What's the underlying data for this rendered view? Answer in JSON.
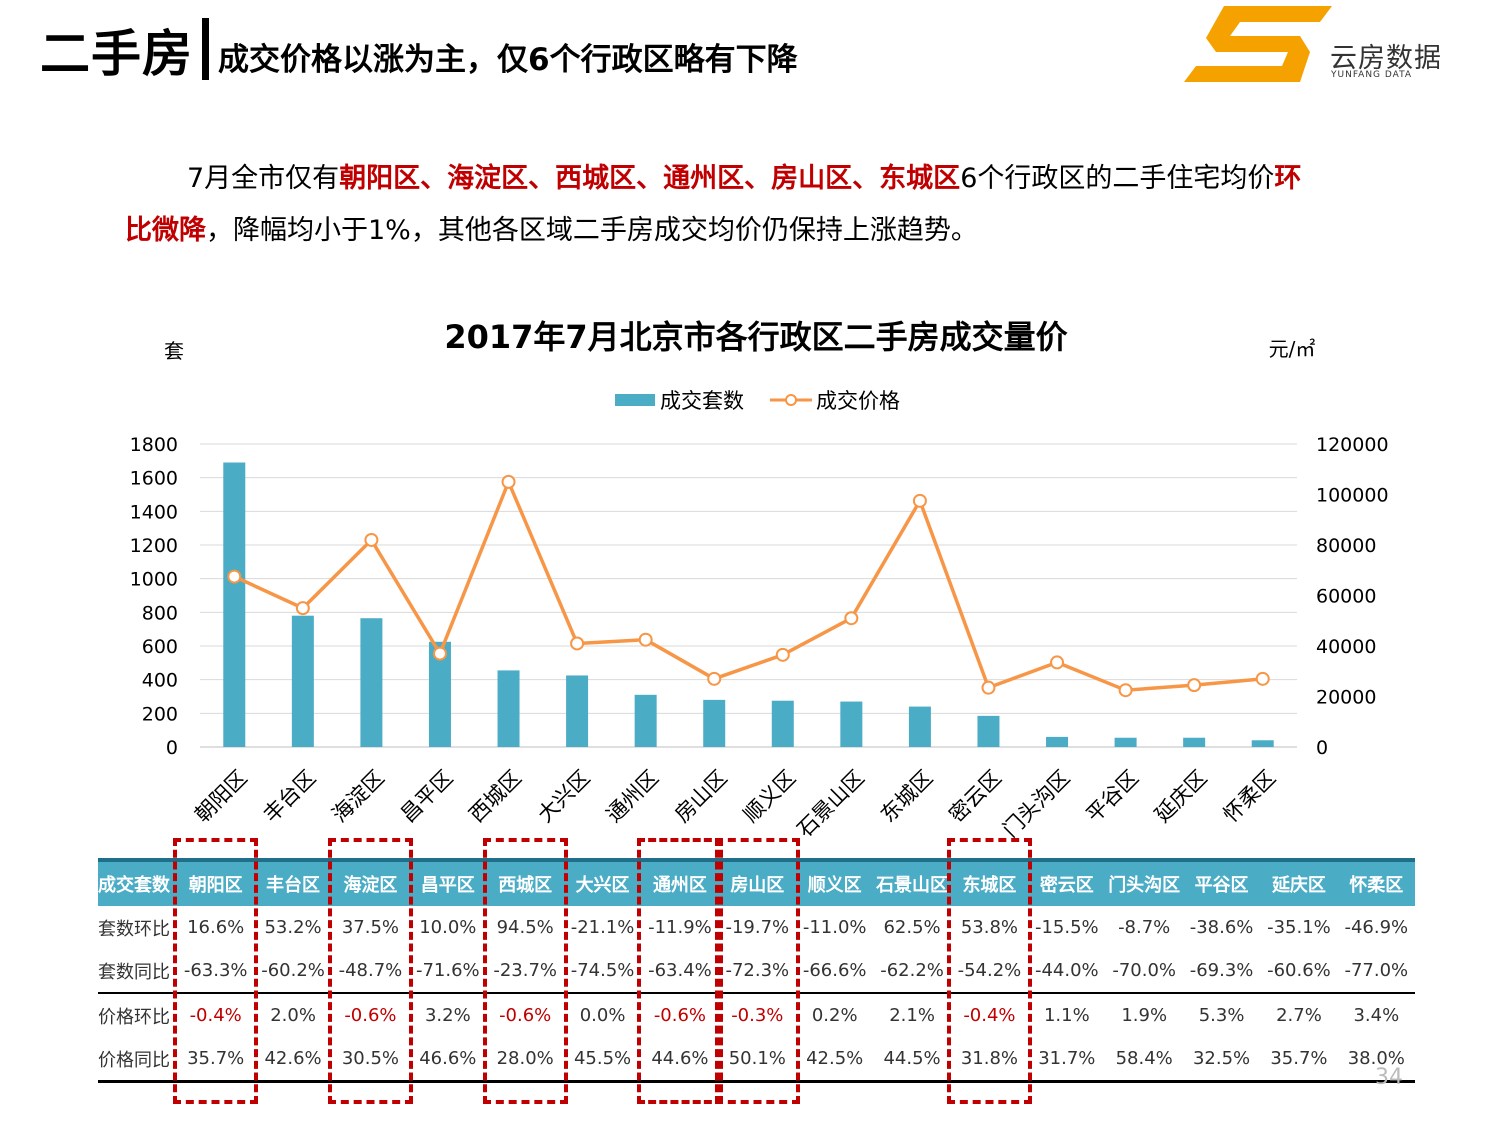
{
  "header": {
    "title": "二手房",
    "subtitle": "成交价格以涨为主，仅6个行政区略有下降",
    "logo_text": "云房数据",
    "logo_sub": "YUNFANG DATA"
  },
  "summary": {
    "line1": [
      {
        "text": "7月全市仅有",
        "em": false
      },
      {
        "text": "朝阳区、海淀区、西城区、通州区、房山区、东城区",
        "em": true
      },
      {
        "text": "6个行政区的二手住宅均价",
        "em": false
      },
      {
        "text": "环",
        "em": true
      }
    ],
    "line2": [
      {
        "text": "比微降",
        "em": true
      },
      {
        "text": "，降幅均小于1%，其他各区域二手房成交均价仍保持上涨趋势。",
        "em": false
      }
    ]
  },
  "chart_data": {
    "type": "bar+line",
    "title": "2017年7月北京市各行政区二手房成交量价",
    "y_left_label": "套",
    "y_right_label": "元/㎡",
    "legend_position": "top",
    "categories": [
      "朝阳区",
      "丰台区",
      "海淀区",
      "昌平区",
      "西城区",
      "大兴区",
      "通州区",
      "房山区",
      "顺义区",
      "石景山区",
      "东城区",
      "密云区",
      "门头沟区",
      "平谷区",
      "延庆区",
      "怀柔区"
    ],
    "series": [
      {
        "name": "成交套数",
        "type": "bar",
        "axis": "left",
        "color": "#4bacc6",
        "values": [
          1690,
          780,
          765,
          625,
          455,
          425,
          310,
          280,
          275,
          270,
          240,
          185,
          60,
          55,
          55,
          40
        ]
      },
      {
        "name": "成交价格",
        "type": "line",
        "axis": "right",
        "color": "#f79646",
        "values": [
          67500,
          55000,
          82000,
          37000,
          105000,
          41000,
          42500,
          27000,
          36500,
          51000,
          97500,
          23500,
          33500,
          22500,
          24500,
          27000
        ]
      }
    ],
    "y_left_ticks": [
      "0",
      "200",
      "400",
      "600",
      "800",
      "1000",
      "1200",
      "1400",
      "1600",
      "1800"
    ],
    "y_left_lim": [
      0,
      1800
    ],
    "y_right_ticks": [
      "0",
      "20000",
      "40000",
      "60000",
      "80000",
      "100000",
      "120000"
    ],
    "y_right_lim": [
      0,
      120000
    ],
    "grid": true
  },
  "table": {
    "header_label": "成交套数",
    "districts": [
      "朝阳区",
      "丰台区",
      "海淀区",
      "昌平区",
      "西城区",
      "大兴区",
      "通州区",
      "房山区",
      "顺义区",
      "石景山区",
      "东城区",
      "密云区",
      "门头沟区",
      "平谷区",
      "延庆区",
      "怀柔区"
    ],
    "rows": [
      {
        "label": "套数环比",
        "values": [
          "16.6%",
          "53.2%",
          "37.5%",
          "10.0%",
          "94.5%",
          "-21.1%",
          "-11.9%",
          "-19.7%",
          "-11.0%",
          "62.5%",
          "53.8%",
          "-15.5%",
          "-8.7%",
          "-38.6%",
          "-35.1%",
          "-46.9%"
        ]
      },
      {
        "label": "套数同比",
        "values": [
          "-63.3%",
          "-60.2%",
          "-48.7%",
          "-71.6%",
          "-23.7%",
          "-74.5%",
          "-63.4%",
          "-72.3%",
          "-66.6%",
          "-62.2%",
          "-54.2%",
          "-44.0%",
          "-70.0%",
          "-69.3%",
          "-60.6%",
          "-77.0%"
        ]
      },
      {
        "label": "价格环比",
        "values": [
          "-0.4%",
          "2.0%",
          "-0.6%",
          "3.2%",
          "-0.6%",
          "0.0%",
          "-0.6%",
          "-0.3%",
          "0.2%",
          "2.1%",
          "-0.4%",
          "1.1%",
          "1.9%",
          "5.3%",
          "2.7%",
          "3.4%"
        ]
      },
      {
        "label": "价格同比",
        "values": [
          "35.7%",
          "42.6%",
          "30.5%",
          "46.6%",
          "28.0%",
          "45.5%",
          "44.6%",
          "50.1%",
          "42.5%",
          "44.5%",
          "31.8%",
          "31.7%",
          "58.4%",
          "32.5%",
          "35.7%",
          "38.0%"
        ]
      }
    ],
    "highlight_columns": [
      0,
      2,
      4,
      6,
      7,
      10
    ]
  },
  "page_number": "34"
}
